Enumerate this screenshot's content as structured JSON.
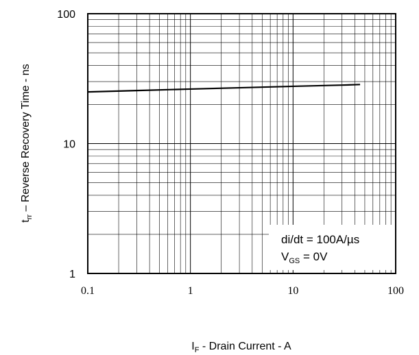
{
  "chart_data": {
    "type": "line",
    "xscale": "log",
    "yscale": "log",
    "xlim": [
      0.1,
      100
    ],
    "ylim": [
      1,
      100
    ],
    "grid": true,
    "x_ticks": [
      "0.1",
      "1",
      "10",
      "100"
    ],
    "y_ticks": [
      "1",
      "10",
      "100"
    ],
    "xlabel": {
      "main": "I",
      "sub": "F",
      "rest": " - Drain Current  - A"
    },
    "ylabel": {
      "main": "t",
      "sub": "rr",
      "rest": " – Reverse Recovery Time - ns"
    },
    "annotation": [
      {
        "text": "di/dt = 100A/µs"
      },
      {
        "main": "V",
        "sub": "GS",
        "rest": " = 0V"
      }
    ],
    "series": [
      {
        "x": [
          0.1,
          0.3,
          1,
          3,
          10,
          30,
          45
        ],
        "y": [
          25,
          25.6,
          26.3,
          26.9,
          27.6,
          28.2,
          28.5
        ]
      }
    ]
  }
}
